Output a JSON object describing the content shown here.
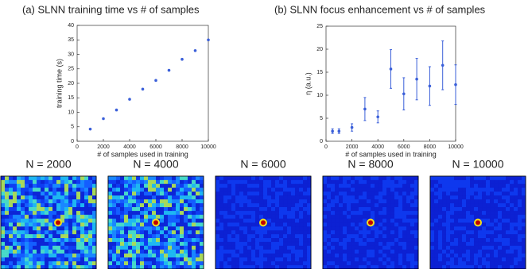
{
  "chart_data": [
    {
      "type": "scatter",
      "title": "(a) SLNN training time vs # of samples",
      "x_label": "# of samples used in training",
      "y_label": "training time (s)",
      "x": [
        1000,
        2000,
        3000,
        4000,
        5000,
        6000,
        7000,
        8000,
        9000,
        10000
      ],
      "values": [
        4.2,
        7.8,
        10.8,
        14.5,
        18,
        21,
        24.5,
        28.3,
        31.3,
        35
      ],
      "color": "#3a5fd9",
      "xlim": [
        0,
        10000
      ],
      "ylim": [
        0,
        40
      ],
      "xticks": [
        0,
        2000,
        4000,
        6000,
        8000,
        10000
      ],
      "yticks": [
        0,
        5,
        10,
        15,
        20,
        25,
        30,
        35,
        40
      ]
    },
    {
      "type": "errorbar",
      "title": "(b) SLNN focus enhancement vs # of samples",
      "x_label": "# of samples used in training",
      "y_label": "η (a.u.)",
      "x": [
        500,
        1000,
        2000,
        3000,
        4000,
        5000,
        6000,
        7000,
        8000,
        9000,
        10000
      ],
      "values": [
        2.2,
        2.2,
        3,
        7,
        5.3,
        15.7,
        10.3,
        13.5,
        12,
        16.5,
        12.3
      ],
      "errors": [
        0.5,
        0.5,
        0.8,
        2.5,
        1.3,
        4.2,
        3.5,
        4.5,
        4.2,
        5.3,
        4.3
      ],
      "color": "#3a5fd9",
      "xlim": [
        0,
        10000
      ],
      "ylim": [
        0,
        25
      ],
      "xticks": [
        0,
        2000,
        4000,
        6000,
        8000,
        10000
      ],
      "yticks": [
        0,
        5,
        10,
        15,
        20,
        25
      ]
    }
  ],
  "images": [
    {
      "label": "N = 2000"
    },
    {
      "label": "N = 4000"
    },
    {
      "label": "N = 6000"
    },
    {
      "label": "N = 8000"
    },
    {
      "label": "N = 10000"
    }
  ]
}
